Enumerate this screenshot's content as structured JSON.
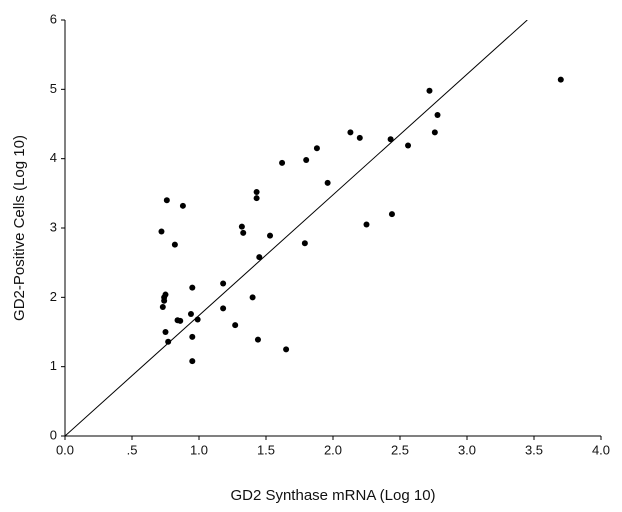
{
  "chart_data": {
    "type": "scatter",
    "x_label": "GD2 Synthase mRNA (Log 10)",
    "y_label": "GD2-Positive Cells (Log 10)",
    "xlim": [
      0,
      4
    ],
    "ylim": [
      0,
      6
    ],
    "xticks": [
      {
        "value": 0,
        "label": "0.0"
      },
      {
        "value": 0.5,
        "label": ".5"
      },
      {
        "value": 1,
        "label": "1.0"
      },
      {
        "value": 1.5,
        "label": "1.5"
      },
      {
        "value": 2,
        "label": "2.0"
      },
      {
        "value": 2.5,
        "label": "2.5"
      },
      {
        "value": 3,
        "label": "3.0"
      },
      {
        "value": 3.5,
        "label": "3.5"
      },
      {
        "value": 4,
        "label": "4.0"
      }
    ],
    "yticks": [
      0,
      1,
      2,
      3,
      4,
      5,
      6
    ],
    "color": "#000000",
    "x": [
      0.72,
      0.76,
      0.88,
      0.82,
      0.73,
      0.74,
      0.74,
      0.75,
      0.75,
      0.77,
      0.84,
      0.86,
      0.95,
      0.94,
      0.95,
      0.95,
      0.99,
      1.18,
      1.18,
      1.27,
      1.32,
      1.33,
      1.4,
      1.43,
      1.43,
      1.45,
      1.44,
      1.53,
      1.62,
      1.65,
      1.79,
      1.8,
      1.88,
      1.96,
      2.13,
      2.2,
      2.25,
      2.43,
      2.44,
      2.56,
      2.72,
      2.76,
      2.78,
      3.7
    ],
    "values": [
      2.95,
      3.4,
      3.32,
      2.76,
      1.86,
      1.95,
      2.0,
      2.04,
      1.5,
      1.36,
      1.67,
      1.66,
      2.14,
      1.76,
      1.43,
      1.08,
      1.68,
      2.2,
      1.84,
      1.6,
      3.02,
      2.93,
      2.0,
      3.52,
      3.43,
      2.58,
      1.39,
      2.89,
      3.94,
      1.25,
      2.78,
      3.98,
      4.15,
      3.65,
      4.38,
      4.3,
      3.05,
      4.28,
      3.2,
      4.19,
      4.98,
      4.38,
      4.63,
      5.14
    ],
    "fit_line": {
      "x": [
        0,
        3.45
      ],
      "y": [
        0,
        6
      ]
    }
  }
}
